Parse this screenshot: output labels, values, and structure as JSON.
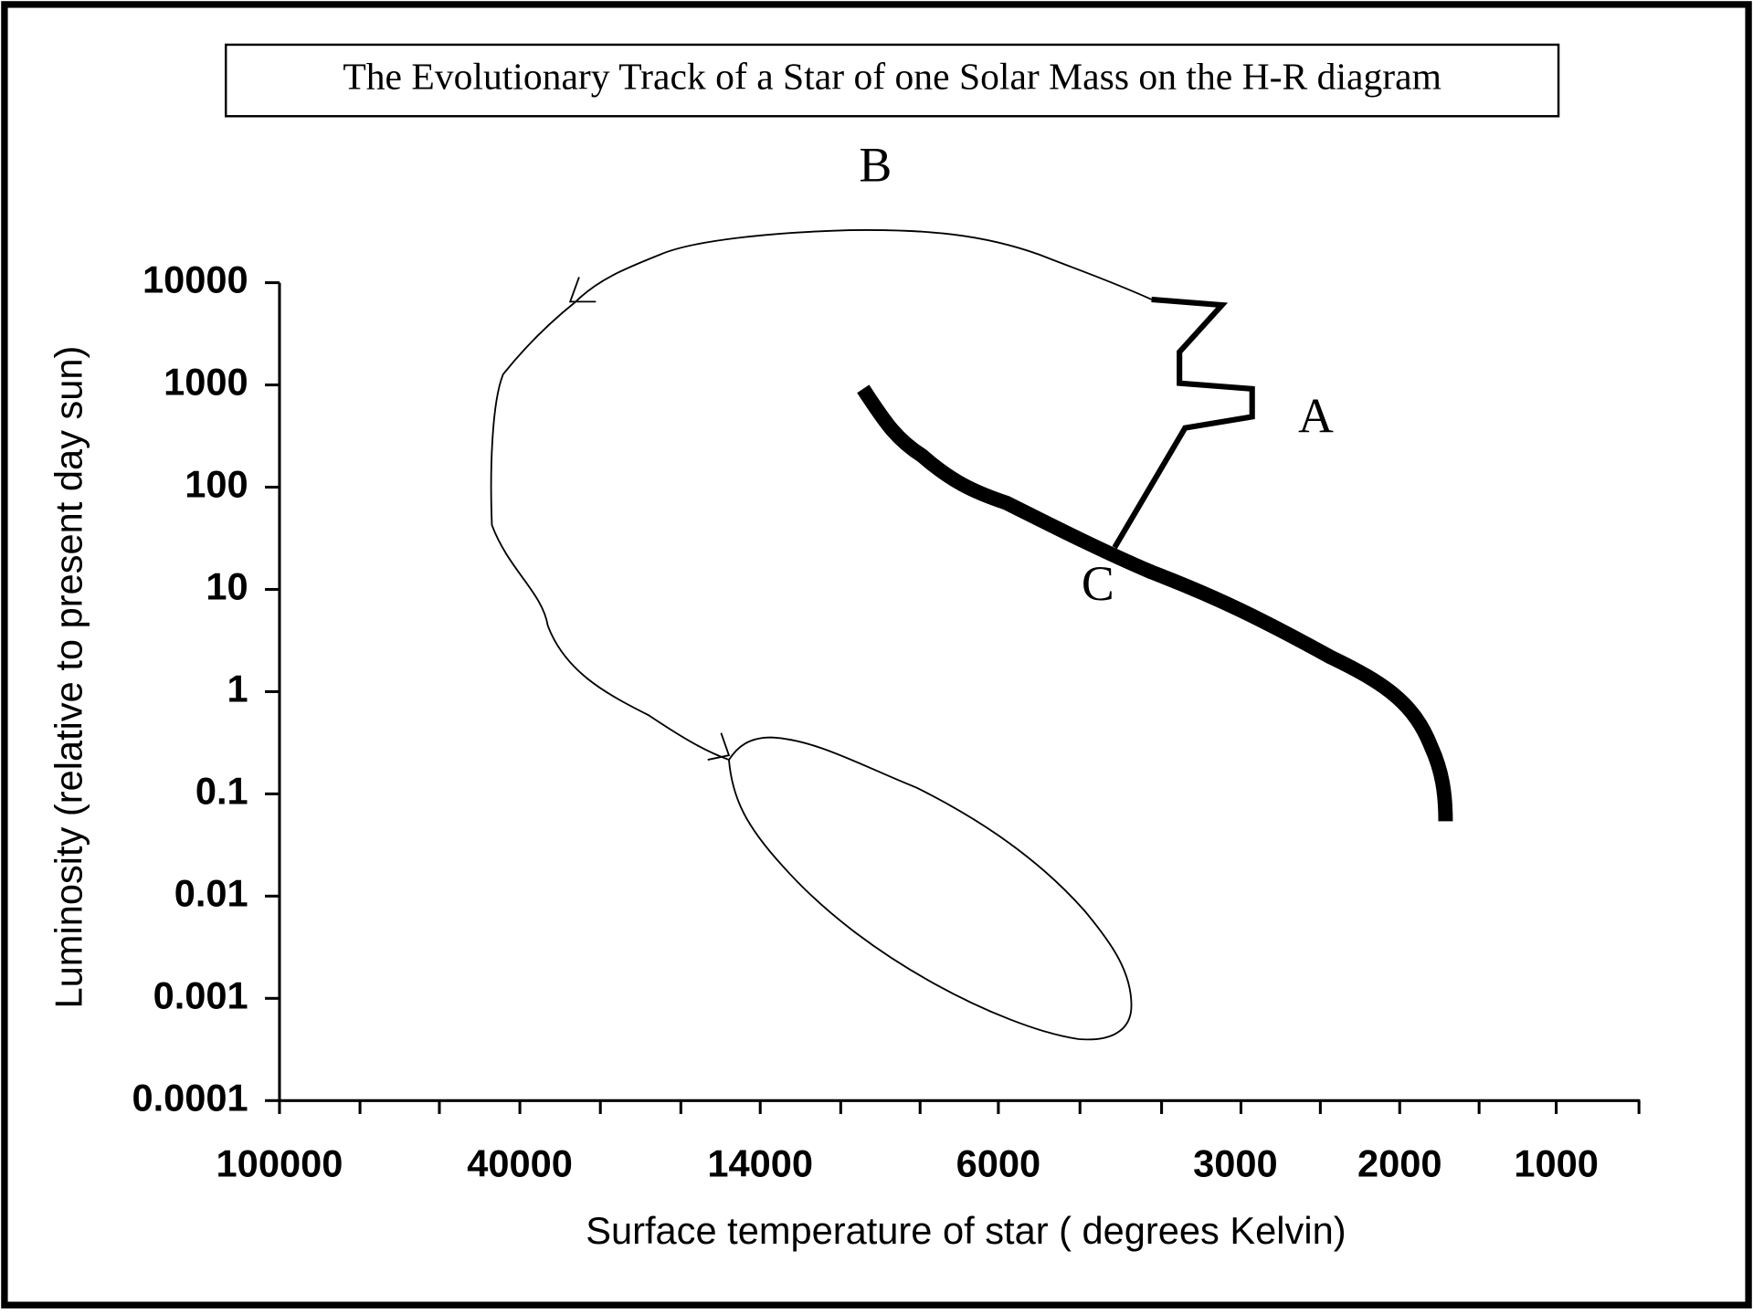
{
  "chart_data": {
    "type": "hr-track",
    "title": "The Evolutionary Track of a Star of one Solar Mass on the H-R diagram",
    "x_label": "Surface temperature of star ( degrees Kelvin)",
    "y_label": "Luminosity (relative to present day sun)",
    "categories": [
      "100000",
      "40000",
      "14000",
      "6000",
      "3000",
      "2000",
      "1000"
    ],
    "ylim": [
      0.0001,
      10000
    ],
    "y_log": true,
    "yticks": [
      10000,
      1000,
      100,
      10,
      1,
      0.1,
      0.01,
      0.001,
      0.0001
    ],
    "annotations": [
      "B",
      "A",
      "C"
    ]
  }
}
